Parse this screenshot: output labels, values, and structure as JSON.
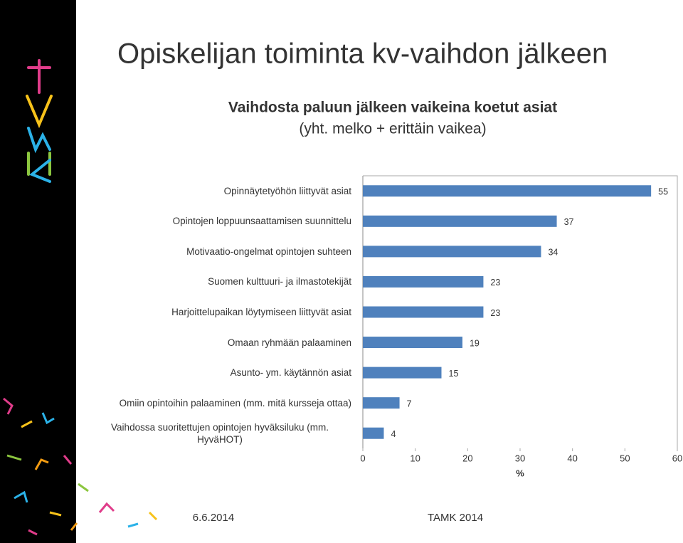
{
  "slide": {
    "title": "Opiskelijan toiminta kv-vaihdon jälkeen",
    "footer_date": "6.6.2014",
    "footer_org": "TAMK 2014"
  },
  "chart_data": {
    "type": "bar",
    "orientation": "horizontal",
    "title": "Vaihdosta paluun jälkeen vaikeina koetut asiat",
    "subtitle": "(yht. melko + erittäin vaikea)",
    "categories": [
      "Opinnäytetyöhön liittyvät asiat",
      "Opintojen loppuunsaattamisen suunnittelu",
      "Motivaatio-ongelmat opintojen suhteen",
      "Suomen kulttuuri- ja ilmastotekijät",
      "Harjoittelupaikan löytymiseen liittyvät asiat",
      "Omaan ryhmään palaaminen",
      "Asunto- ym. käytännön asiat",
      "Omiin opintoihin palaaminen (mm. mitä kursseja ottaa)",
      "Vaihdossa suoritettujen opintojen hyväksiluku (mm. HyväHOT)"
    ],
    "values": [
      55,
      37,
      34,
      23,
      23,
      19,
      15,
      7,
      4
    ],
    "color": "#4f81bd",
    "xlim": [
      0,
      60
    ],
    "xticks": [
      0,
      10,
      20,
      30,
      40,
      50,
      60
    ],
    "xlabel": "%"
  }
}
